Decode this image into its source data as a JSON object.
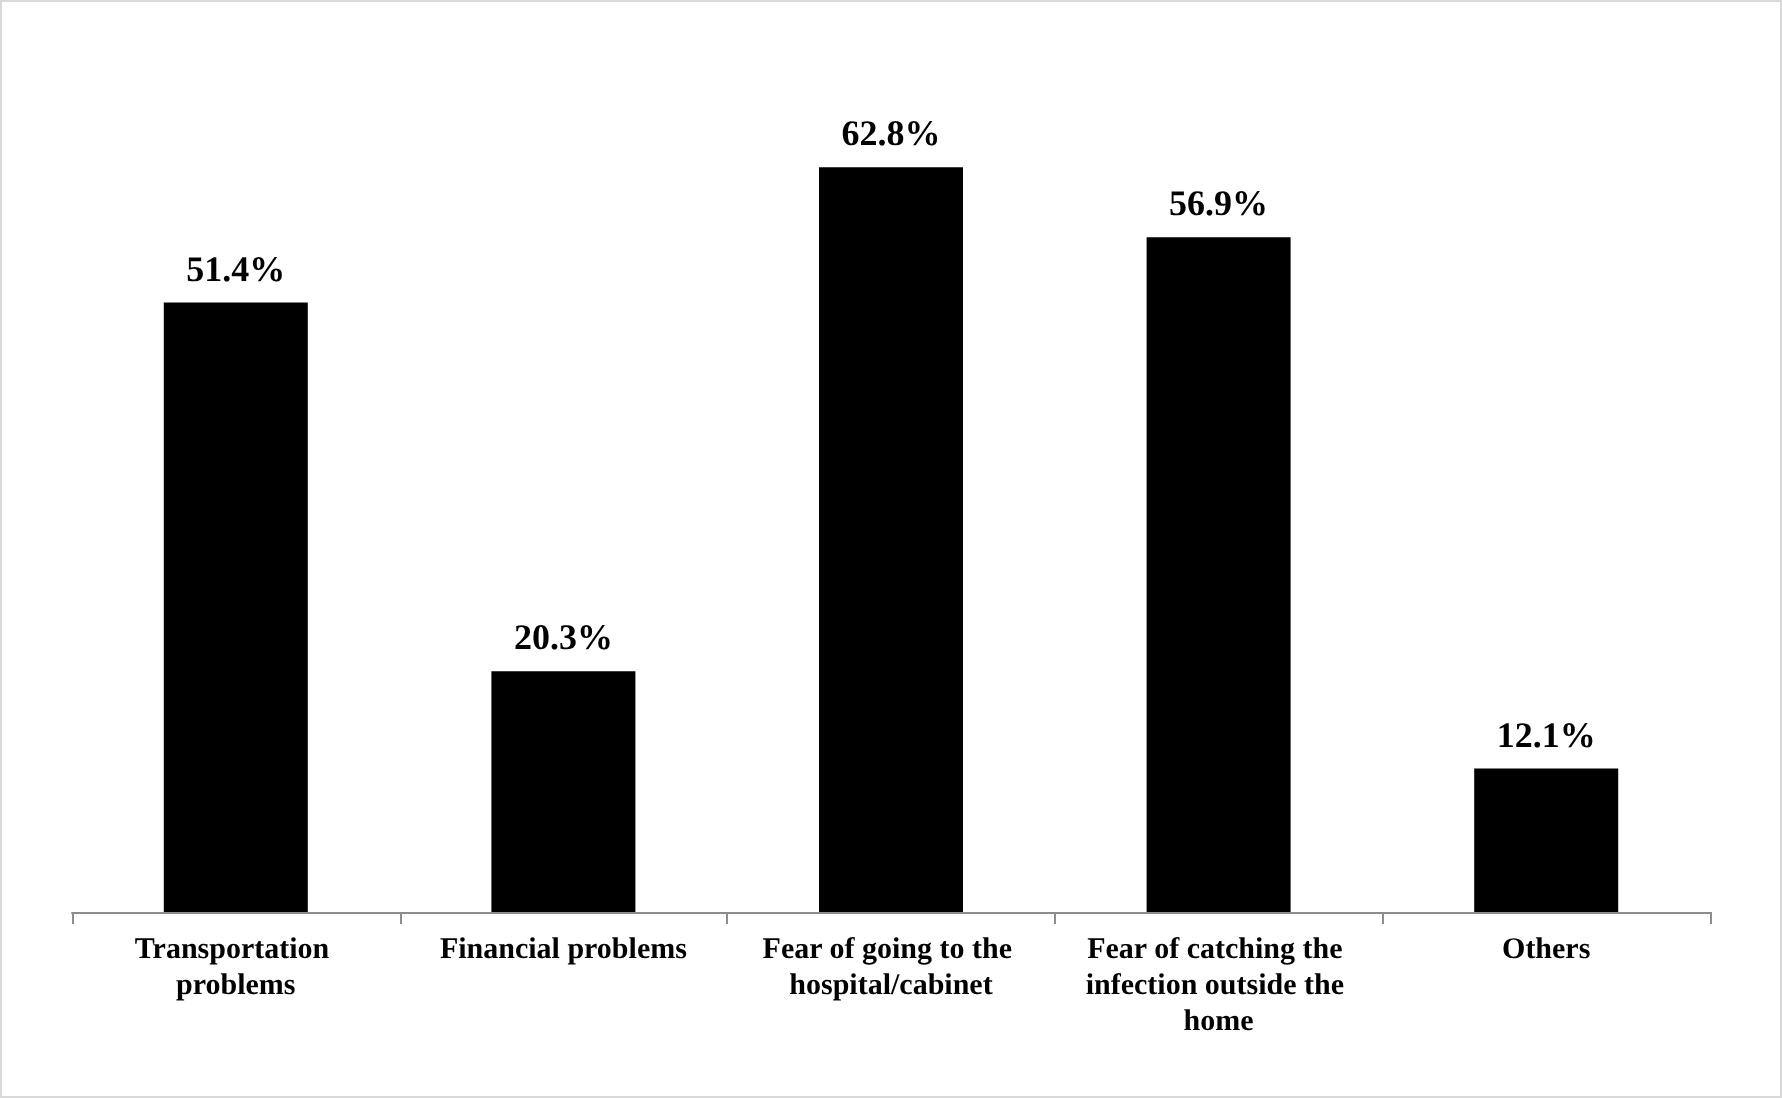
{
  "chart_data": {
    "type": "bar",
    "categories": [
      "Transportation problems",
      "Financial problems",
      "Fear of going to the hospital/cabinet",
      "Fear of catching the infection outside the home",
      "Others"
    ],
    "values": [
      51.4,
      20.3,
      62.8,
      56.9,
      12.1
    ],
    "value_labels": [
      "51.4%",
      "20.3%",
      "62.8%",
      "56.9%",
      "12.1%"
    ],
    "color": "#000000"
  }
}
